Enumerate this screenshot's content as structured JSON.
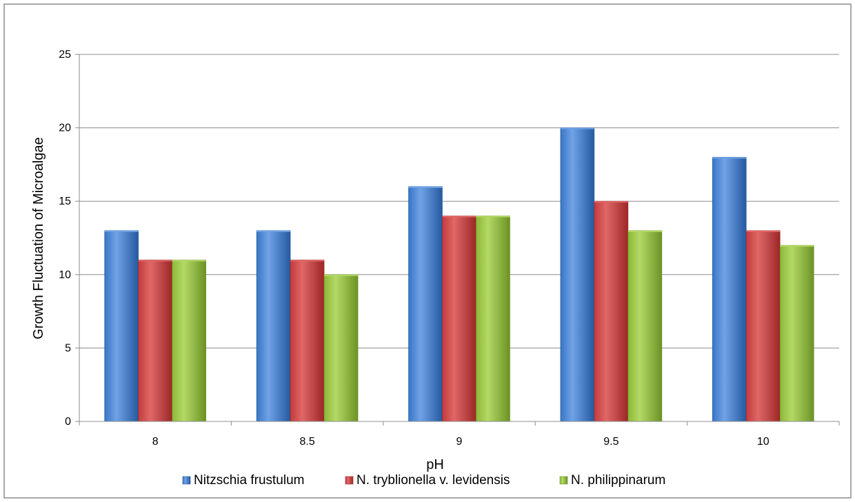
{
  "chart_data": {
    "type": "bar",
    "categories": [
      "8",
      "8.5",
      "9",
      "9.5",
      "10"
    ],
    "series": [
      {
        "name": "Nitzschia frustulum",
        "values": [
          13,
          13,
          16,
          20,
          18
        ]
      },
      {
        "name": "N. tryblionella v. levidensis",
        "values": [
          11,
          11,
          14,
          15,
          13
        ]
      },
      {
        "name": "N. philippinarum",
        "values": [
          11,
          10,
          14,
          13,
          12
        ]
      }
    ],
    "title": "",
    "xlabel": "pH",
    "ylabel": "Growth Fluctuation of Microalgae",
    "ylim": [
      0,
      25
    ],
    "yticks": [
      "0",
      "5",
      "10",
      "15",
      "20",
      "25"
    ],
    "grid": true,
    "legend_position": "bottom",
    "colors": {
      "series": [
        "#3a75c4",
        "#c43b3b",
        "#8db838"
      ],
      "series_light": [
        "#6fa2e6",
        "#e06767",
        "#b4d865"
      ],
      "series_dark": [
        "#255aa0",
        "#9c2727",
        "#6b9224"
      ],
      "grid": "#8c8c8c",
      "frame": "#8c8c8c"
    }
  }
}
